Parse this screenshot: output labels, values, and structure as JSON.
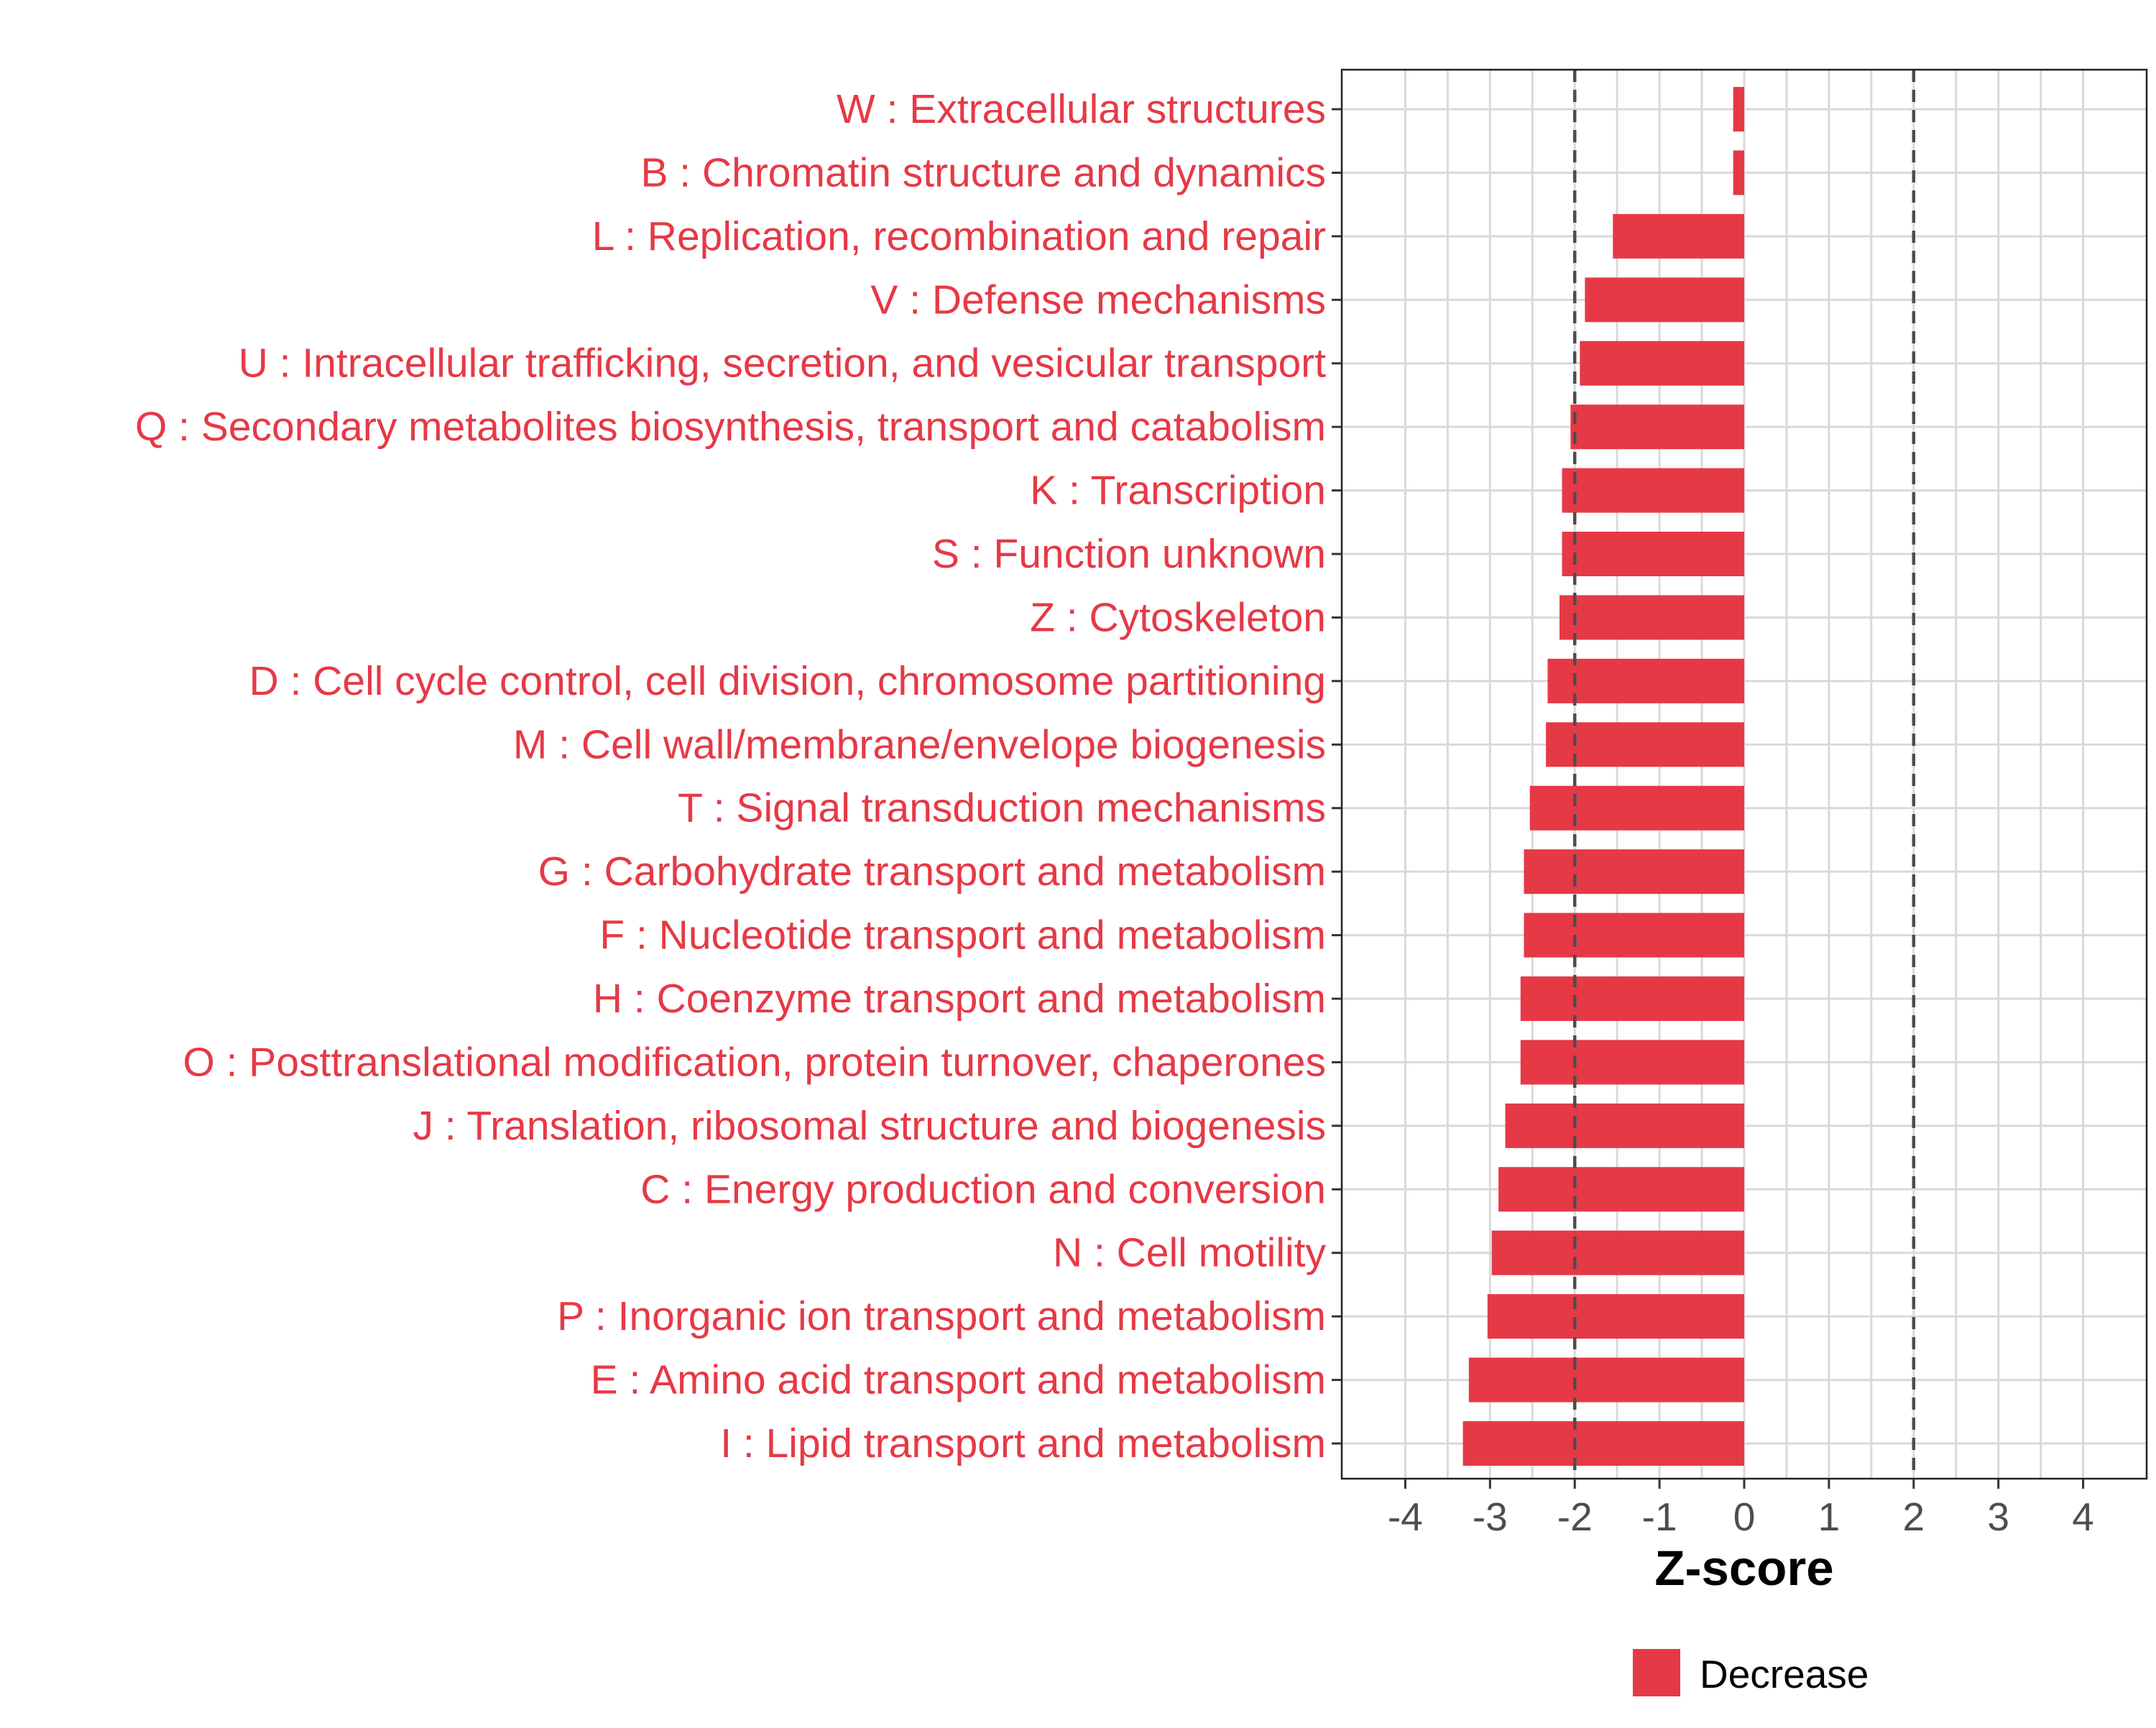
{
  "colors": {
    "bar": "#e63946",
    "label": "#e63946",
    "tick": "#4d4d4d",
    "grid": "#d9d9d9",
    "threshold": "#4d4d4d"
  },
  "chart_data": {
    "type": "bar",
    "orientation": "horizontal",
    "title": "",
    "xlabel": "Z-score",
    "ylabel": "",
    "xlim": [
      -4.75,
      4.75
    ],
    "xticks": [
      -4,
      -3,
      -2,
      -1,
      0,
      1,
      2,
      3,
      4
    ],
    "grid": true,
    "threshold_lines": [
      -2,
      2
    ],
    "legend": {
      "position": "bottom",
      "entries": [
        "Decrease"
      ]
    },
    "categories": [
      "W : Extracellular structures",
      "B : Chromatin structure and dynamics",
      "L : Replication, recombination and repair",
      "V : Defense mechanisms",
      "U : Intracellular trafficking, secretion, and vesicular transport",
      "Q : Secondary metabolites biosynthesis, transport and catabolism",
      "K : Transcription",
      "S : Function unknown",
      "Z : Cytoskeleton",
      "D : Cell cycle control, cell division, chromosome partitioning",
      "M : Cell wall/membrane/envelope biogenesis",
      "T : Signal transduction mechanisms",
      "G : Carbohydrate transport and metabolism",
      "F : Nucleotide transport and metabolism",
      "H : Coenzyme transport and metabolism",
      "O : Posttranslational modification, protein turnover, chaperones",
      "J : Translation, ribosomal structure and biogenesis",
      "C : Energy production and conversion",
      "N : Cell motility",
      "P : Inorganic ion transport and metabolism",
      "E : Amino acid transport and metabolism",
      "I : Lipid transport and metabolism"
    ],
    "series": [
      {
        "name": "Decrease",
        "values": [
          -0.13,
          -0.13,
          -1.55,
          -1.88,
          -1.94,
          -2.05,
          -2.15,
          -2.15,
          -2.18,
          -2.32,
          -2.34,
          -2.53,
          -2.6,
          -2.6,
          -2.64,
          -2.64,
          -2.82,
          -2.9,
          -2.98,
          -3.03,
          -3.25,
          -3.32
        ]
      }
    ]
  }
}
